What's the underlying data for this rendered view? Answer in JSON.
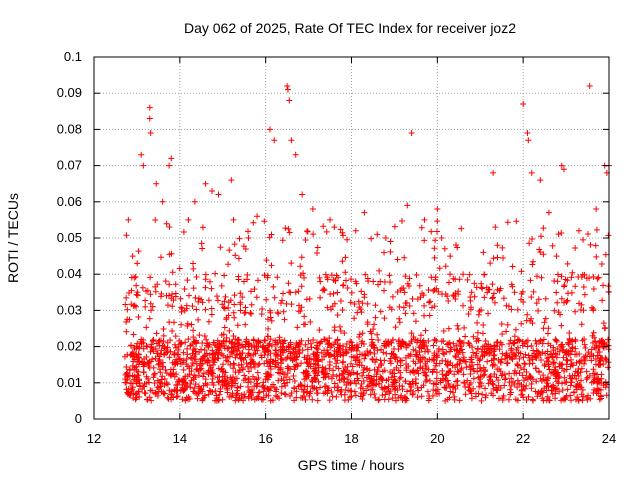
{
  "chart_data": {
    "type": "scatter",
    "title": "Day 062 of 2025, Rate Of TEC Index for receiver joz2",
    "xlabel": "GPS time / hours",
    "ylabel": "ROTI / TECUs",
    "xlim": [
      12,
      24
    ],
    "ylim": [
      0,
      0.1
    ],
    "xticks": [
      12,
      14,
      16,
      18,
      20,
      22,
      24
    ],
    "xtick_labels": [
      "12",
      "14",
      "16",
      "18",
      "20",
      "22",
      "24"
    ],
    "yticks": [
      0,
      0.01,
      0.02,
      0.03,
      0.04,
      0.05,
      0.06,
      0.07,
      0.08,
      0.09,
      0.1
    ],
    "ytick_labels": [
      "0",
      "0.01",
      "0.02",
      "0.03",
      "0.04",
      "0.05",
      "0.06",
      "0.07",
      "0.08",
      "0.09",
      "0.1"
    ],
    "grid": true,
    "marker": "+",
    "series": [
      {
        "name": "ROTI",
        "color": "#ff0000",
        "x": [
          12.75,
          12.8,
          12.9,
          13.1,
          13.15,
          13.3,
          13.3,
          13.32,
          13.45,
          13.6,
          13.75,
          13.8,
          14.2,
          14.35,
          14.6,
          14.75,
          14.9,
          15.2,
          15.25,
          15.6,
          15.8,
          16.1,
          16.2,
          16.5,
          16.52,
          16.55,
          16.6,
          16.7,
          16.85,
          17.1,
          17.5,
          17.6,
          18.1,
          18.3,
          18.6,
          18.8,
          19.3,
          19.4,
          19.7,
          20.0,
          20.1,
          20.3,
          20.6,
          20.8,
          21.3,
          21.35,
          21.4,
          21.8,
          22.0,
          22.1,
          22.12,
          22.2,
          22.4,
          22.6,
          22.9,
          22.95,
          23.3,
          23.55,
          23.7,
          23.9,
          23.95,
          24.0,
          12.9,
          13.5,
          14.1,
          14.5,
          15.0,
          15.5,
          16.0,
          16.4,
          17.0,
          17.4,
          17.9,
          18.4,
          18.9,
          19.5,
          20.2,
          20.5,
          21.0,
          21.5,
          22.3,
          22.7,
          23.2,
          23.8
        ],
        "y": [
          0.01,
          0.055,
          0.045,
          0.073,
          0.07,
          0.086,
          0.083,
          0.079,
          0.065,
          0.06,
          0.07,
          0.072,
          0.055,
          0.06,
          0.065,
          0.063,
          0.062,
          0.066,
          0.055,
          0.05,
          0.056,
          0.08,
          0.077,
          0.092,
          0.091,
          0.088,
          0.077,
          0.073,
          0.062,
          0.058,
          0.055,
          0.053,
          0.052,
          0.057,
          0.051,
          0.05,
          0.059,
          0.079,
          0.055,
          0.058,
          0.05,
          0.045,
          0.04,
          0.035,
          0.068,
          0.053,
          0.048,
          0.035,
          0.087,
          0.079,
          0.077,
          0.068,
          0.066,
          0.057,
          0.07,
          0.069,
          0.052,
          0.092,
          0.058,
          0.07,
          0.068,
          0.07,
          0.012,
          0.015,
          0.011,
          0.014,
          0.013,
          0.012,
          0.011,
          0.013,
          0.012,
          0.014,
          0.011,
          0.012,
          0.013,
          0.011,
          0.012,
          0.013,
          0.011,
          0.012,
          0.014,
          0.013,
          0.012,
          0.015
        ]
      }
    ]
  }
}
